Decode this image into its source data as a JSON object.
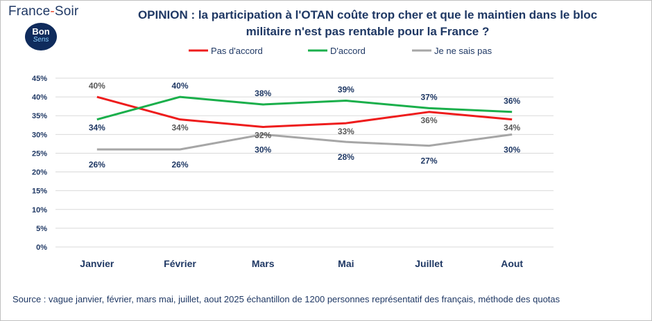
{
  "header": {
    "brand_left": "France",
    "brand_dash": "-",
    "brand_right": "Soir",
    "badge_line1": "Bon",
    "badge_line2": "Sens"
  },
  "chart_data": {
    "type": "line",
    "title_line1": "OPINION : la participation à l'OTAN coûte trop cher et que le maintien dans le bloc",
    "title_line2": "militaire n'est pas rentable pour la France ?",
    "categories": [
      "Janvier",
      "Février",
      "Mars",
      "Mai",
      "Juillet",
      "Aout"
    ],
    "ylim": [
      0,
      45
    ],
    "yticks": [
      "0%",
      "5%",
      "10%",
      "15%",
      "20%",
      "25%",
      "30%",
      "35%",
      "40%",
      "45%"
    ],
    "grid": true,
    "legend_position": "top",
    "series": [
      {
        "name": "Pas d'accord",
        "color": "#ee1c1c",
        "values": [
          40,
          34,
          32,
          33,
          36,
          34
        ],
        "labels": [
          "40%",
          "34%",
          "32%",
          "33%",
          "36%",
          "34%"
        ]
      },
      {
        "name": "D'accord",
        "color": "#1aaf4b",
        "values": [
          34,
          40,
          38,
          39,
          37,
          36
        ],
        "labels": [
          "34%",
          "40%",
          "38%",
          "39%",
          "37%",
          "36%"
        ]
      },
      {
        "name": "Je ne sais pas",
        "color": "#a6a6a6",
        "values": [
          26,
          26,
          30,
          28,
          27,
          30
        ],
        "labels": [
          "26%",
          "26%",
          "30%",
          "28%",
          "27%",
          "30%"
        ]
      }
    ]
  },
  "footer": {
    "source": "Source : vague janvier, février, mars  mai, juillet, aout  2025 échantillon de 1200 personnes représentatif des français, méthode des quotas"
  }
}
